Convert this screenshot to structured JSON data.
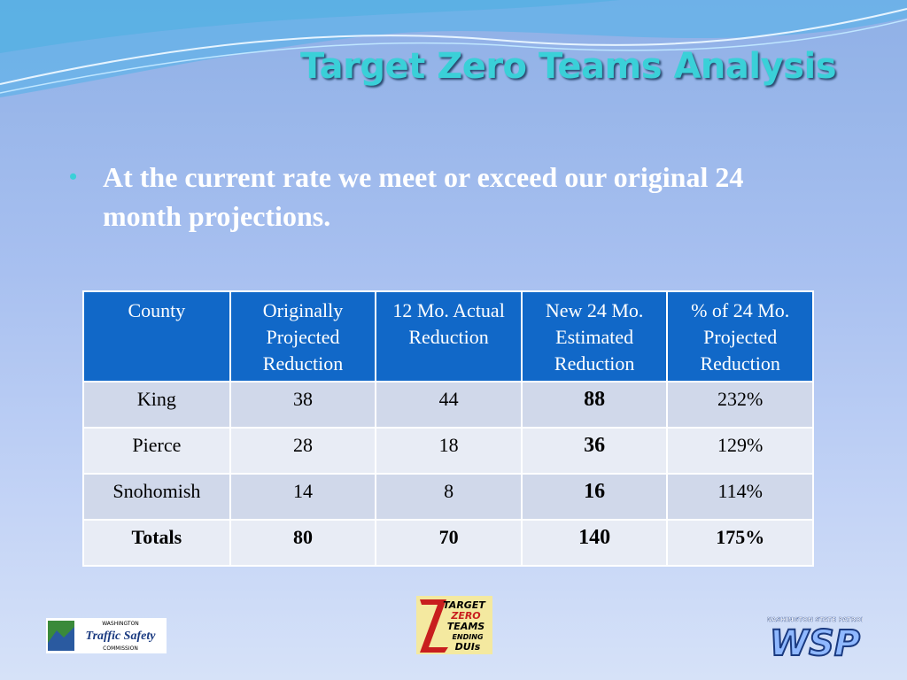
{
  "title": "Target Zero Teams Analysis",
  "bullets": [
    "At the current rate we meet or exceed our original 24 month projections."
  ],
  "table": {
    "header": [
      "County",
      "Originally Projected Reduction",
      "12 Mo. Actual Reduction",
      "New 24 Mo. Estimated Reduction",
      "% of 24 Mo. Projected Reduction"
    ],
    "rows": [
      [
        "King",
        "38",
        "44",
        "88",
        "232%"
      ],
      [
        "Pierce",
        "28",
        "18",
        "36",
        "129%"
      ],
      [
        "Snohomish",
        "14",
        "8",
        "16",
        "114%"
      ],
      [
        "Totals",
        "80",
        "70",
        "140",
        "175%"
      ]
    ]
  },
  "logos": {
    "traffic_safety": [
      "WASHINGTON",
      "Traffic Safety",
      "COMMISSION"
    ],
    "target_zero": [
      "TARGET",
      "ZERO",
      "TEAMS",
      "ENDING",
      "DUIs"
    ],
    "wsp": [
      "WASHINGTON STATE PATROL",
      "WSP"
    ]
  }
}
